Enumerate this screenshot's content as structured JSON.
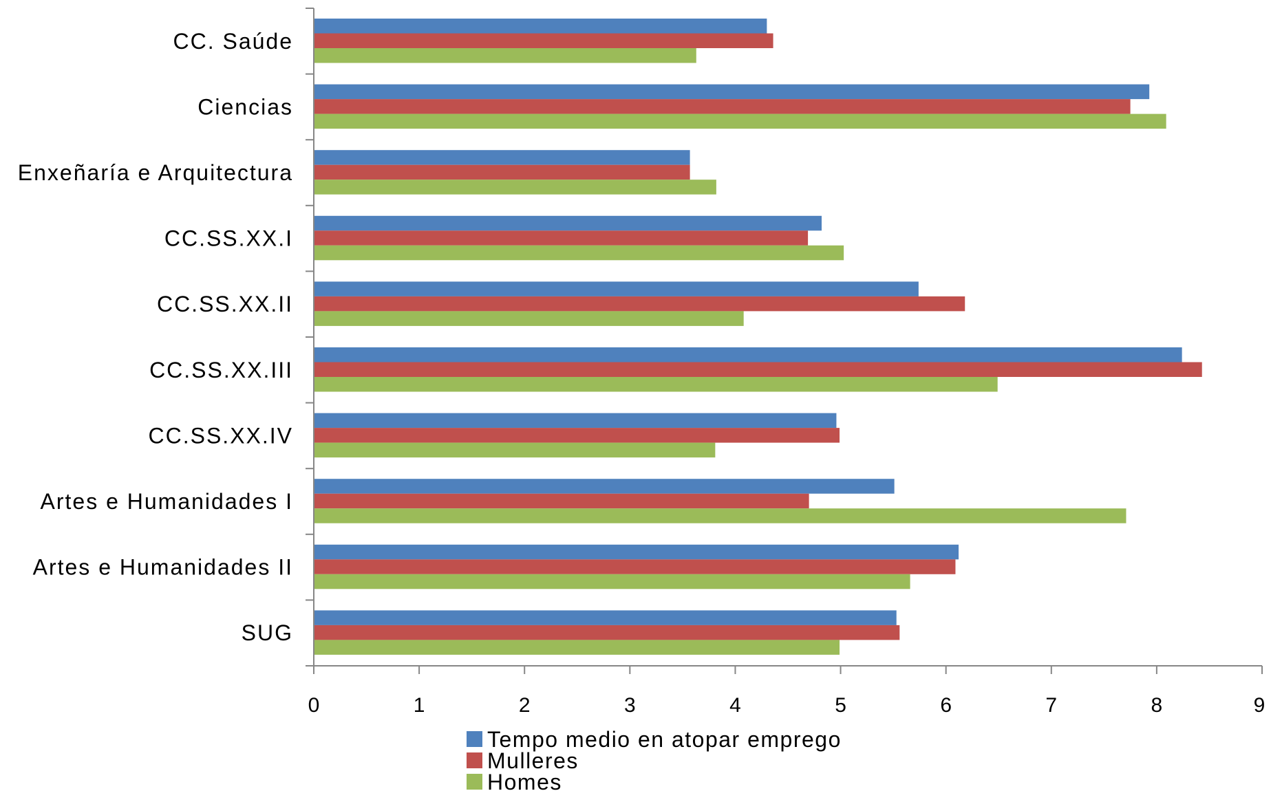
{
  "chart_data": {
    "type": "bar",
    "orientation": "horizontal",
    "categories": [
      "CC. Saúde",
      "Ciencias",
      "Enxeñaría e Arquitectura",
      "CC.SS.XX.I",
      "CC.SS.XX.II",
      "CC.SS.XX.III",
      "CC.SS.XX.IV",
      "Artes e Humanidades I",
      "Artes e Humanidades II",
      "SUG"
    ],
    "series": [
      {
        "name": "Tempo medio en atopar emprego",
        "color": "#4F81BD",
        "values": [
          4.3,
          7.93,
          3.57,
          4.82,
          5.74,
          8.24,
          4.96,
          5.51,
          6.12,
          5.53
        ]
      },
      {
        "name": "Mulleres",
        "color": "#C0504D",
        "values": [
          4.36,
          7.75,
          3.57,
          4.69,
          6.18,
          8.43,
          4.99,
          4.7,
          6.09,
          5.56
        ]
      },
      {
        "name": "Homes",
        "color": "#9BBB59",
        "values": [
          3.63,
          8.09,
          3.82,
          5.03,
          4.08,
          6.49,
          3.81,
          7.71,
          5.66,
          4.99
        ]
      }
    ],
    "xlim": [
      0,
      9
    ],
    "xticks": [
      "0",
      "1",
      "2",
      "3",
      "4",
      "5",
      "6",
      "7",
      "8",
      "9"
    ],
    "title": "",
    "xlabel": "",
    "ylabel": "",
    "grid": false,
    "legend_position": "bottom"
  }
}
